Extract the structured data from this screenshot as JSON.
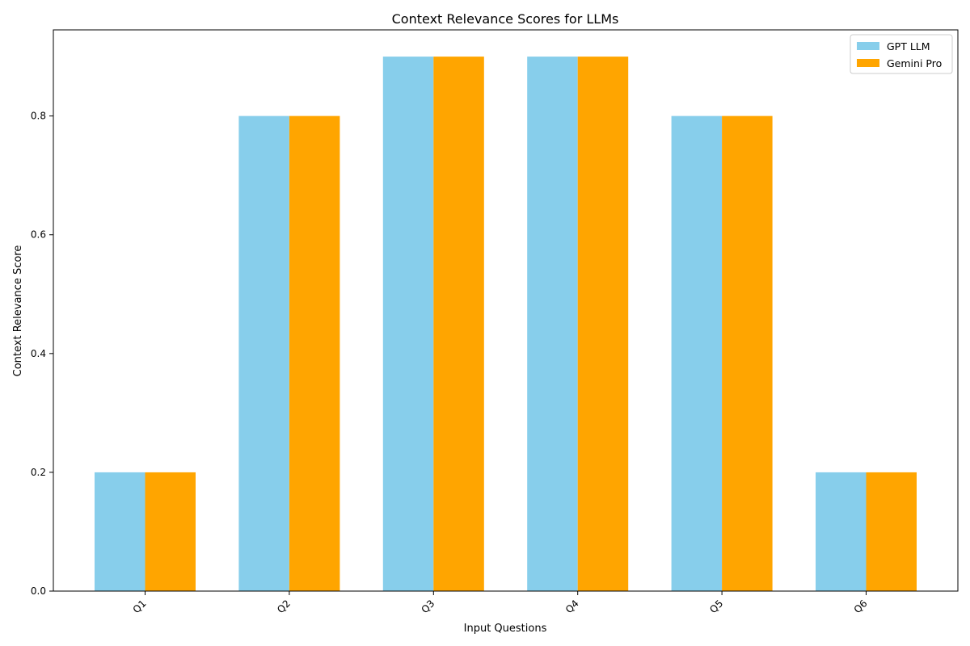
{
  "chart_data": {
    "type": "bar",
    "title": "Context Relevance Scores for LLMs",
    "xlabel": "Input Questions",
    "ylabel": "Context Relevance Score",
    "categories": [
      "Q1",
      "Q2",
      "Q3",
      "Q4",
      "Q5",
      "Q6"
    ],
    "series": [
      {
        "name": "GPT LLM",
        "color": "#87CEEB",
        "values": [
          0.2,
          0.8,
          0.9,
          0.9,
          0.8,
          0.2
        ]
      },
      {
        "name": "Gemini Pro",
        "color": "#FFA500",
        "values": [
          0.2,
          0.8,
          0.9,
          0.9,
          0.8,
          0.2
        ]
      }
    ],
    "ylim": [
      0,
      0.945
    ],
    "yticks": [
      "0.0",
      "0.2",
      "0.4",
      "0.6",
      "0.8"
    ],
    "ytick_values": [
      0.0,
      0.2,
      0.4,
      0.6,
      0.8
    ],
    "grid": false,
    "legend_position": "top-right"
  }
}
